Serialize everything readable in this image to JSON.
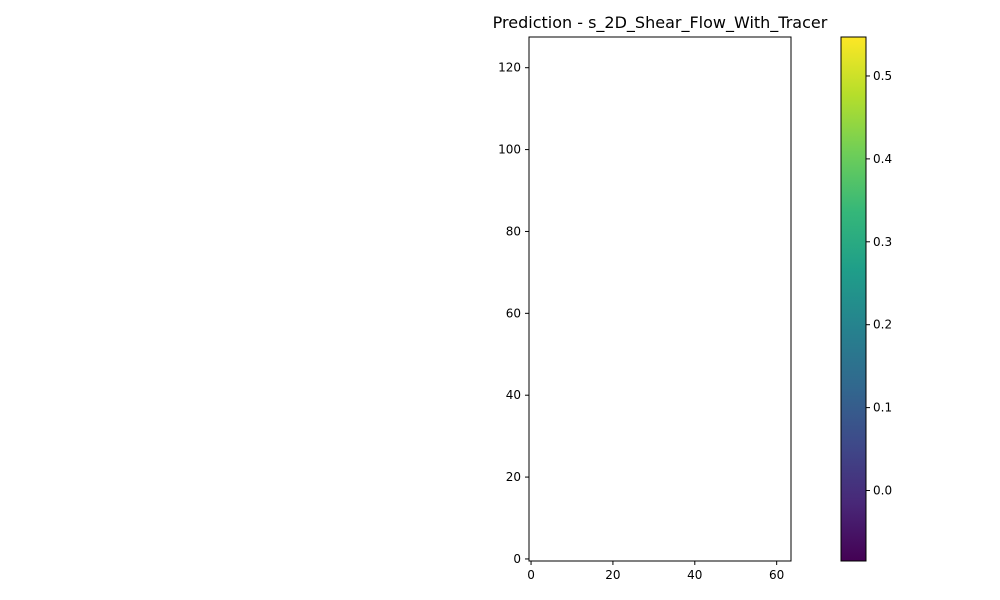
{
  "chart_data": {
    "type": "heatmap",
    "title": "Prediction - s_2D_Shear_Flow_With_Tracer",
    "xlabel": "",
    "ylabel": "",
    "xlim": [
      -0.5,
      63.5
    ],
    "ylim": [
      -0.5,
      127.5
    ],
    "x_ticks": [
      0,
      20,
      40,
      60
    ],
    "y_ticks": [
      0,
      20,
      40,
      60,
      80,
      100,
      120
    ],
    "cells": [],
    "colorbar": {
      "colormap": "viridis",
      "range": [
        -0.085,
        0.547
      ],
      "ticks": [
        0.0,
        0.1,
        0.2,
        0.3,
        0.4,
        0.5
      ],
      "tick_labels": [
        "0.0",
        "0.1",
        "0.2",
        "0.3",
        "0.4",
        "0.5"
      ],
      "colors": [
        "#440154",
        "#482878",
        "#3e4989",
        "#31688e",
        "#26828e",
        "#1f9e89",
        "#35b779",
        "#6ece58",
        "#b5de2b",
        "#fde725"
      ]
    }
  }
}
